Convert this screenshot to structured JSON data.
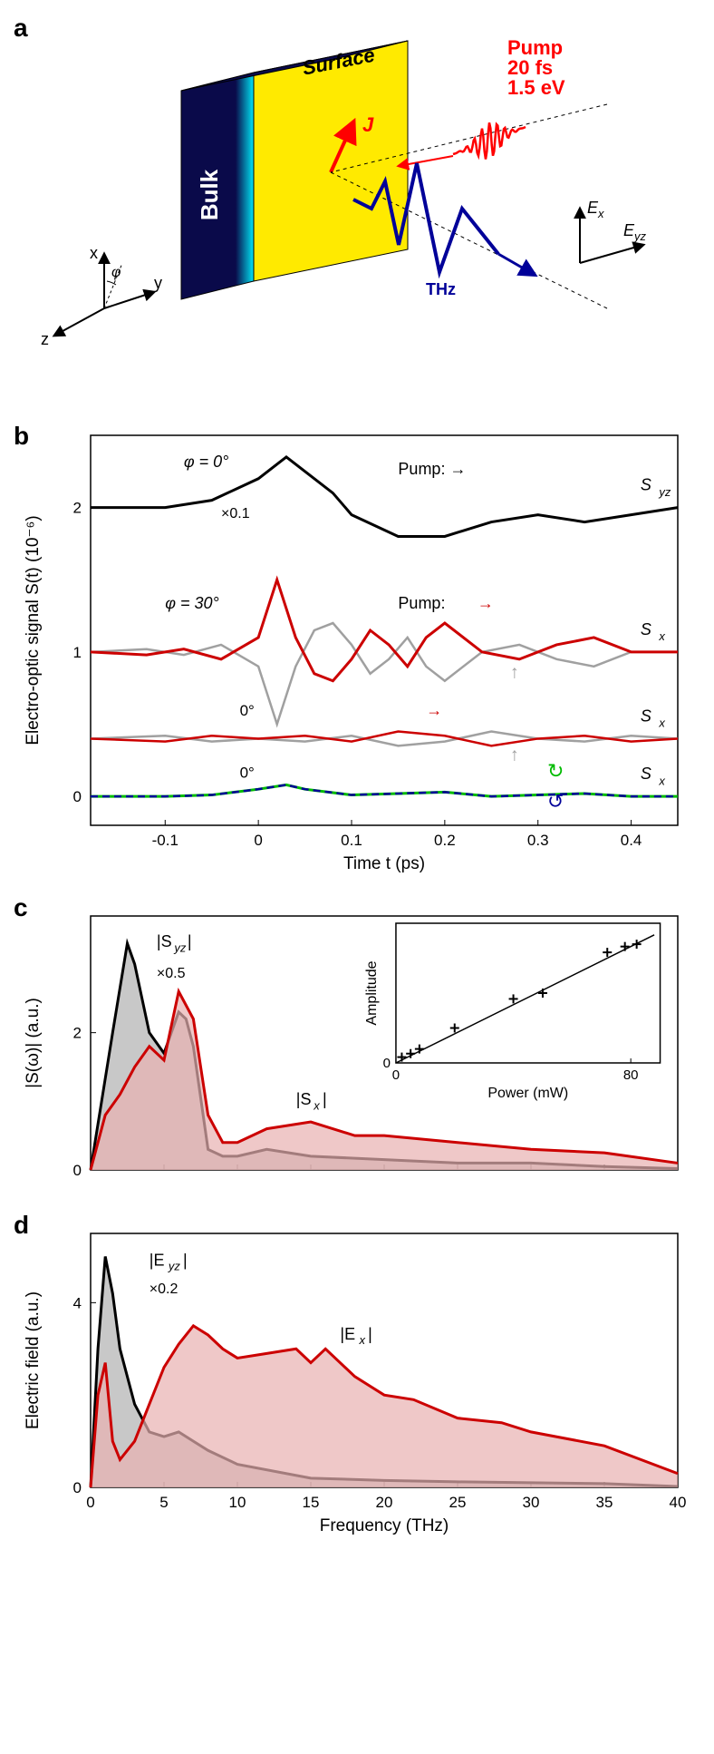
{
  "panel_a": {
    "label": "a",
    "bulk_label": "Bulk",
    "surface_label": "Surface",
    "pump_label": "Pump",
    "pump_lines": [
      "20 fs",
      "1.5 eV"
    ],
    "thz_label": "THz",
    "j_label": "J",
    "axis_x": "x",
    "axis_y": "y",
    "axis_z": "z",
    "phi_label": "φ",
    "Ex_label": "Eₓ",
    "Eyz_label": "E_yz",
    "colors": {
      "bulk": "#0a0a4a",
      "bulk_edge": "#00e5f5",
      "surface": "#ffea00",
      "pump": "#ff0000",
      "thz": "#000099",
      "j_arrow": "#ff0000"
    }
  },
  "panel_b": {
    "label": "b",
    "xlabel": "Time t (ps)",
    "ylabel": "Electro-optic signal S(t) (10⁻⁶)",
    "xlim": [
      -0.18,
      0.45
    ],
    "xticks": [
      -0.1,
      0,
      0.1,
      0.2,
      0.3,
      0.4
    ],
    "ylim": [
      -0.2,
      2.5
    ],
    "yticks": [
      0,
      1,
      2
    ],
    "colors": {
      "black": "#000000",
      "red": "#cc0000",
      "grey": "#a0a0a0",
      "green": "#00bb00",
      "blue": "#000099"
    },
    "curves": {
      "top_black": {
        "offset": 2.0,
        "phi_label": "φ = 0°",
        "mult": "×0.1",
        "pump": "Pump: →",
        "right": "S_yz",
        "x": [
          -0.18,
          -0.1,
          -0.05,
          0,
          0.03,
          0.05,
          0.08,
          0.1,
          0.15,
          0.2,
          0.25,
          0.3,
          0.35,
          0.4,
          0.45
        ],
        "y": [
          2.0,
          2.0,
          2.05,
          2.2,
          2.35,
          2.25,
          2.1,
          1.95,
          1.8,
          1.8,
          1.9,
          1.95,
          1.9,
          1.95,
          2.0
        ]
      },
      "mid_red": {
        "offset": 1.0,
        "phi_label": "φ = 30°",
        "pump": "Pump: →",
        "right": "Sₓ",
        "x": [
          -0.18,
          -0.12,
          -0.08,
          -0.04,
          0,
          0.02,
          0.04,
          0.06,
          0.08,
          0.1,
          0.12,
          0.14,
          0.16,
          0.18,
          0.2,
          0.24,
          0.28,
          0.32,
          0.36,
          0.4,
          0.45
        ],
        "y": [
          1.0,
          0.98,
          1.02,
          0.95,
          1.1,
          1.5,
          1.1,
          0.85,
          0.8,
          0.95,
          1.15,
          1.05,
          0.9,
          1.1,
          1.2,
          1.0,
          0.95,
          1.05,
          1.1,
          1.0,
          1.0
        ]
      },
      "mid_grey": {
        "x": [
          -0.18,
          -0.12,
          -0.08,
          -0.04,
          0,
          0.02,
          0.04,
          0.06,
          0.08,
          0.1,
          0.12,
          0.14,
          0.16,
          0.18,
          0.2,
          0.24,
          0.28,
          0.32,
          0.36,
          0.4,
          0.45
        ],
        "y": [
          1.0,
          1.02,
          0.98,
          1.05,
          0.9,
          0.5,
          0.9,
          1.15,
          1.2,
          1.05,
          0.85,
          0.95,
          1.1,
          0.9,
          0.8,
          1.0,
          1.05,
          0.95,
          0.9,
          1.0,
          1.0
        ]
      },
      "low_red": {
        "offset": 0.4,
        "phi_label": "0°",
        "right": "Sₓ",
        "x": [
          -0.18,
          -0.1,
          -0.05,
          0,
          0.05,
          0.1,
          0.15,
          0.2,
          0.25,
          0.3,
          0.35,
          0.4,
          0.45
        ],
        "y": [
          0.4,
          0.38,
          0.42,
          0.4,
          0.42,
          0.38,
          0.45,
          0.42,
          0.35,
          0.4,
          0.42,
          0.38,
          0.4
        ]
      },
      "low_grey": {
        "x": [
          -0.18,
          -0.1,
          -0.05,
          0,
          0.05,
          0.1,
          0.15,
          0.2,
          0.25,
          0.3,
          0.35,
          0.4,
          0.45
        ],
        "y": [
          0.4,
          0.42,
          0.38,
          0.4,
          0.38,
          0.42,
          0.35,
          0.38,
          0.45,
          0.4,
          0.38,
          0.42,
          0.4
        ]
      },
      "bottom_green": {
        "offset": 0.0,
        "phi_label": "0°",
        "right": "Sₓ",
        "x": [
          -0.18,
          -0.1,
          -0.05,
          0,
          0.03,
          0.05,
          0.1,
          0.15,
          0.2,
          0.25,
          0.3,
          0.35,
          0.4,
          0.45
        ],
        "y": [
          0.0,
          0.0,
          0.01,
          0.05,
          0.08,
          0.05,
          0.01,
          0.02,
          0.03,
          0.0,
          0.01,
          0.02,
          0.0,
          0.0
        ]
      },
      "bottom_blue": {
        "x": [
          -0.18,
          -0.1,
          -0.05,
          0,
          0.03,
          0.05,
          0.1,
          0.15,
          0.2,
          0.25,
          0.3,
          0.35,
          0.4,
          0.45
        ],
        "y": [
          0.0,
          0.0,
          0.01,
          0.05,
          0.08,
          0.05,
          0.01,
          0.02,
          0.03,
          0.0,
          0.01,
          0.02,
          0.0,
          0.0
        ]
      }
    }
  },
  "panel_c": {
    "label": "c",
    "ylabel": "|S(ω)| (a.u.)",
    "xlim": [
      0,
      40
    ],
    "xticks": [
      0,
      5,
      10,
      15,
      20,
      25,
      30,
      35,
      40
    ],
    "ylim": [
      0,
      3.7
    ],
    "yticks": [
      0,
      2
    ],
    "labels": {
      "syz": "|S_yz|",
      "syz_mult": "×0.5",
      "sx": "|Sₓ|"
    },
    "colors": {
      "black": "#000000",
      "black_fill": "#b0b0b0",
      "red": "#cc0000",
      "red_fill": "#e8b0b0"
    },
    "curves": {
      "black": {
        "x": [
          0,
          1.5,
          2.5,
          3,
          4,
          5,
          6,
          6.5,
          7,
          8,
          9,
          10,
          12,
          15,
          20,
          25,
          30,
          35,
          40
        ],
        "y": [
          0,
          2.0,
          3.3,
          3.0,
          2.0,
          1.7,
          2.3,
          2.2,
          1.8,
          0.3,
          0.2,
          0.2,
          0.3,
          0.2,
          0.15,
          0.1,
          0.1,
          0.05,
          0.02
        ]
      },
      "red": {
        "x": [
          0,
          1,
          2,
          3,
          4,
          5,
          6,
          7,
          8,
          9,
          10,
          12,
          15,
          18,
          20,
          25,
          30,
          35,
          40
        ],
        "y": [
          0,
          0.8,
          1.1,
          1.5,
          1.8,
          1.6,
          2.6,
          2.2,
          0.8,
          0.4,
          0.4,
          0.6,
          0.7,
          0.5,
          0.5,
          0.4,
          0.3,
          0.25,
          0.1
        ]
      }
    },
    "inset": {
      "xlabel": "Power (mW)",
      "ylabel": "Amplitude",
      "xlim": [
        0,
        90
      ],
      "xticks": [
        0,
        80
      ],
      "ylim": [
        0,
        1.2
      ],
      "yticks": [
        0
      ],
      "points_x": [
        2,
        5,
        8,
        20,
        40,
        50,
        72,
        78,
        82
      ],
      "points_y": [
        0.05,
        0.08,
        0.12,
        0.3,
        0.55,
        0.6,
        0.95,
        1.0,
        1.02
      ],
      "line": {
        "slope": 0.0125,
        "intercept": 0.0
      }
    }
  },
  "panel_d": {
    "label": "d",
    "xlabel": "Frequency (THz)",
    "ylabel": "Electric field (a.u.)",
    "xlim": [
      0,
      40
    ],
    "xticks": [
      0,
      5,
      10,
      15,
      20,
      25,
      30,
      35,
      40
    ],
    "ylim": [
      0,
      5.5
    ],
    "yticks": [
      0,
      4
    ],
    "labels": {
      "eyz": "|E_yz|",
      "eyz_mult": "×0.2",
      "ex": "|Eₓ|"
    },
    "colors": {
      "black": "#000000",
      "black_fill": "#b0b0b0",
      "red": "#cc0000",
      "red_fill": "#e8b0b0"
    },
    "curves": {
      "black": {
        "x": [
          0,
          0.5,
          1,
          1.5,
          2,
          3,
          4,
          5,
          6,
          7,
          8,
          10,
          15,
          20,
          25,
          30,
          35,
          40
        ],
        "y": [
          0,
          3.0,
          5.0,
          4.2,
          3.0,
          1.8,
          1.2,
          1.1,
          1.2,
          1.0,
          0.8,
          0.5,
          0.2,
          0.15,
          0.12,
          0.1,
          0.08,
          0.02
        ]
      },
      "red": {
        "x": [
          0,
          0.5,
          1,
          1.5,
          2,
          3,
          4,
          5,
          6,
          7,
          8,
          9,
          10,
          12,
          14,
          15,
          16,
          18,
          20,
          22,
          25,
          28,
          30,
          35,
          40
        ],
        "y": [
          0,
          2.0,
          2.7,
          1.0,
          0.6,
          1.0,
          1.8,
          2.6,
          3.1,
          3.5,
          3.3,
          3.0,
          2.8,
          2.9,
          3.0,
          2.7,
          3.0,
          2.4,
          2.0,
          1.9,
          1.5,
          1.4,
          1.2,
          0.9,
          0.3
        ]
      }
    }
  }
}
